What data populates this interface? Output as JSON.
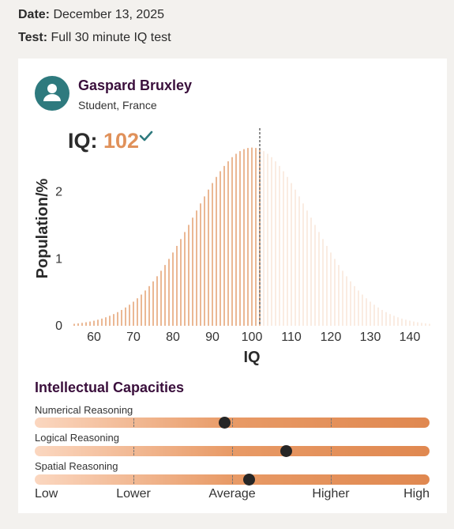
{
  "meta": {
    "date_label": "Date:",
    "date_value": "December 13, 2025",
    "test_label": "Test:",
    "test_value": "Full 30 minute IQ test"
  },
  "profile": {
    "name": "Gaspard Bruxley",
    "subtitle": "Student, France",
    "avatar_icon": "user-icon",
    "avatar_color": "#2e7a7e"
  },
  "result": {
    "iq_label": "IQ:",
    "iq_score": "102",
    "verified_icon": "check-icon",
    "score_color": "#e0915a"
  },
  "chart_data": {
    "type": "bar",
    "title": "",
    "xlabel": "IQ",
    "ylabel": "Population/%",
    "x_ticks": [
      60,
      70,
      80,
      90,
      100,
      110,
      120,
      130,
      140
    ],
    "y_ticks": [
      0,
      1,
      2
    ],
    "xlim": [
      54,
      145
    ],
    "ylim": [
      0,
      2.75
    ],
    "distribution": {
      "mean": 100,
      "sd": 15,
      "peak_percent": 2.66
    },
    "bar_step": 1,
    "marker_value": 102,
    "colors": {
      "filled": "#e0915a",
      "unfilled": "#f8e2d2",
      "marker": "#555555"
    }
  },
  "capacities": {
    "title": "Intellectual Capacities",
    "items": [
      {
        "label": "Numerical Reasoning",
        "level": 0.48
      },
      {
        "label": "Logical Reasoning",
        "level": 0.636
      },
      {
        "label": "Spatial Reasoning",
        "level": 0.542
      }
    ],
    "scale_labels": [
      "Low",
      "Lower",
      "Average",
      "Higher",
      "High"
    ]
  }
}
